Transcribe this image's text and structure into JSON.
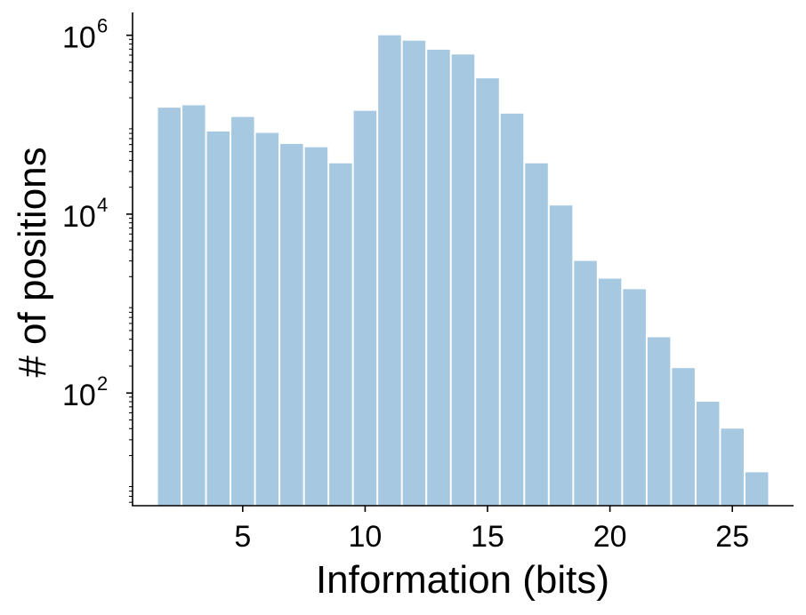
{
  "chart_data": {
    "type": "bar",
    "xlabel": "Information (bits)",
    "ylabel": "# of positions",
    "yscale": "log",
    "xlim": [
      0.5,
      27.5
    ],
    "ylim": [
      5.5,
      1800000
    ],
    "x_ticks": [
      {
        "value": 5,
        "label": "5"
      },
      {
        "value": 10,
        "label": "10"
      },
      {
        "value": 15,
        "label": "15"
      },
      {
        "value": 20,
        "label": "20"
      },
      {
        "value": 25,
        "label": "25"
      }
    ],
    "y_ticks": [
      {
        "value": 100,
        "base": "10",
        "exp": "2"
      },
      {
        "value": 10000,
        "base": "10",
        "exp": "4"
      },
      {
        "value": 1000000,
        "base": "10",
        "exp": "6"
      }
    ],
    "bin_width": 1,
    "bar_color": "#a6c8e0",
    "x": [
      2,
      3,
      4,
      5,
      6,
      7,
      8,
      9,
      10,
      11,
      12,
      13,
      14,
      15,
      16,
      17,
      18,
      19,
      20,
      21,
      22,
      23,
      24,
      25,
      26
    ],
    "values": [
      155000,
      165000,
      84000,
      122000,
      81000,
      61000,
      56000,
      37000,
      143000,
      1000000,
      870000,
      690000,
      610000,
      330000,
      133000,
      37000,
      12500,
      3000,
      1900,
      1450,
      420,
      190,
      80,
      40,
      13
    ],
    "grid": false,
    "legend": "none"
  }
}
